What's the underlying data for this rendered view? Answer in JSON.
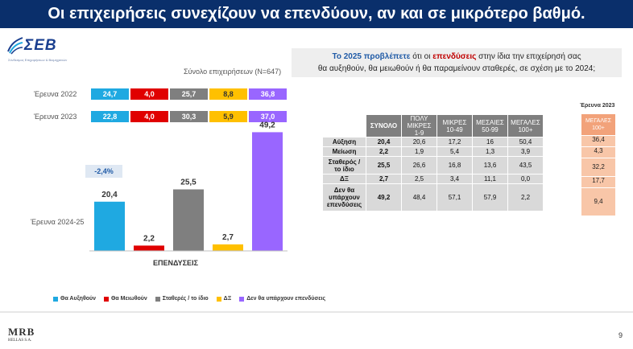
{
  "header": {
    "title": "Οι επιχειρήσεις συνεχίζουν να επενδύουν, αν και σε μικρότερο βαθμό."
  },
  "logo": {
    "name": "ΣΕΒ",
    "subtitle": "Σύνδεσμος Επιχειρήσεων & Βιομηχανιών"
  },
  "total_label": "Σύνολο επιχειρήσεων (N=647)",
  "note": {
    "part1": "Το 2025 προβλέπετε",
    "part2": " ότι οι ",
    "part3": "επενδύσεις",
    "part4": " στην ίδια την επιχείρησή σας",
    "line2": "θα αυξηθούν, θα μειωθούν ή θα παραμείνουν σταθερές, σε σχέση με το 2024;"
  },
  "colors": {
    "increase": "#1fa9e1",
    "decrease": "#e00000",
    "stable": "#7f7f7f",
    "dk": "#ffc000",
    "none": "#9966ff",
    "header_bg": "#0a2f6b"
  },
  "chart_data": {
    "type": "bar",
    "stacked_rows": [
      {
        "label": "Έρευνα 2022",
        "values": [
          24.7,
          4.0,
          25.7,
          8.8,
          36.8
        ],
        "labels": [
          "24,7",
          "4,0",
          "25,7",
          "8,8",
          "36,8"
        ]
      },
      {
        "label": "Έρευνα 2023",
        "values": [
          22.8,
          4.0,
          30.3,
          5.9,
          37.0
        ],
        "labels": [
          "22,8",
          "4,0",
          "30,3",
          "5,9",
          "37,0"
        ]
      }
    ],
    "bars": {
      "group_label": "Έρευνα 2024-25",
      "categories": [
        "Θα Αυξηθούν",
        "Θα Μειωθούν",
        "Σταθερές / το ίδιο",
        "ΔΞ",
        "Δεν θα υπάρχουν επενδύσεις"
      ],
      "values": [
        20.4,
        2.2,
        25.5,
        2.7,
        49.2
      ],
      "labels": [
        "20,4",
        "2,2",
        "25,5",
        "2,7",
        "49,2"
      ],
      "xlabel": "ΕΠΕΝΔΥΣΕΙΣ",
      "ylim": [
        0,
        55
      ]
    },
    "change_note": "-2,4%",
    "legend": [
      "Θα Αυξηθούν",
      "Θα Μειωθούν",
      "Σταθερές / το ίδιο",
      "ΔΞ",
      "Δεν θα υπάρχουν επενδύσεις"
    ]
  },
  "table": {
    "headers": [
      "ΣΥΝΟΛΟ",
      "ΠΟΛΥ ΜΙΚΡΕΣ 1-9",
      "ΜΙΚΡΕΣ 10-49",
      "ΜΕΣΑΙΕΣ 50-99",
      "ΜΕΓΑΛΕΣ 100+"
    ],
    "rows": [
      {
        "label": "Αύξηση",
        "values": [
          "20,4",
          "20,6",
          "17,2",
          "16",
          "50,4"
        ]
      },
      {
        "label": "Μείωση",
        "values": [
          "2,2",
          "1,9",
          "5,4",
          "1,3",
          "3,9"
        ]
      },
      {
        "label": "Σταθερός / το ίδιο",
        "values": [
          "25,5",
          "26,6",
          "16,8",
          "13,6",
          "43,5"
        ]
      },
      {
        "label": "ΔΞ",
        "values": [
          "2,7",
          "2,5",
          "3,4",
          "11,1",
          "0,0"
        ]
      },
      {
        "label": "Δεν θα υπάρχουν επενδύσεις",
        "values": [
          "49,2",
          "48,4",
          "57,1",
          "57,9",
          "2,2"
        ]
      }
    ]
  },
  "side": {
    "title": "Έρευνα 2023",
    "header": "ΜΕΓΑΛΕΣ 100+",
    "values": [
      "36,4",
      "4,3",
      "32,2",
      "17,7",
      "9,4"
    ]
  },
  "footer": {
    "brand": "MRB",
    "brand_sub": "HELLAS S.A.",
    "page": "9"
  }
}
